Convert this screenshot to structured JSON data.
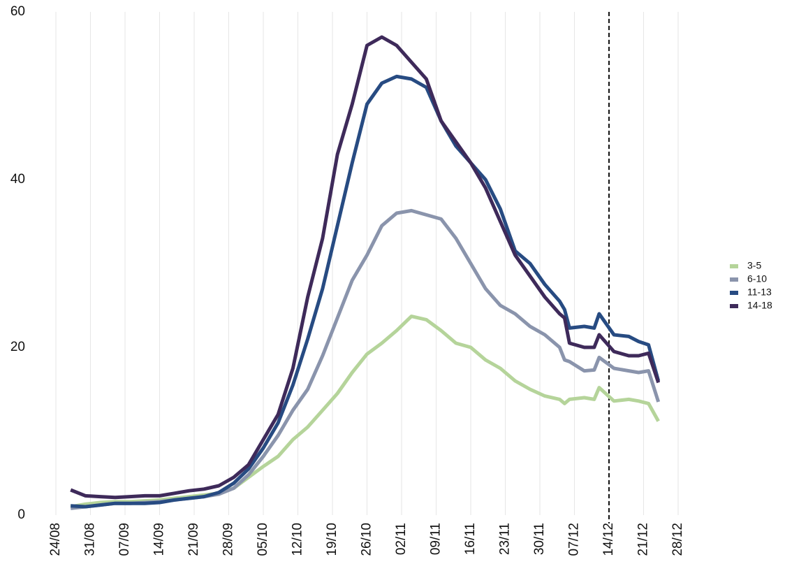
{
  "chart_data": {
    "type": "line",
    "x": [
      "27/08",
      "30/08",
      "02/09",
      "05/09",
      "08/09",
      "11/09",
      "14/09",
      "17/09",
      "20/09",
      "23/09",
      "26/09",
      "29/09",
      "02/10",
      "05/10",
      "08/10",
      "11/10",
      "14/10",
      "17/10",
      "20/10",
      "23/10",
      "26/10",
      "29/10",
      "01/11",
      "04/11",
      "07/11",
      "10/11",
      "13/11",
      "16/11",
      "19/11",
      "22/11",
      "25/11",
      "28/11",
      "01/12",
      "04/12",
      "05/12",
      "06/12",
      "09/12",
      "11/12",
      "12/12",
      "15/12",
      "18/12",
      "20/12",
      "22/12",
      "24/12"
    ],
    "series": [
      {
        "name": "3-5",
        "color": "#b5d49a",
        "values": [
          1.0,
          1.3,
          1.5,
          1.6,
          1.6,
          1.7,
          1.8,
          2.0,
          2.2,
          2.4,
          2.6,
          3.2,
          4.5,
          5.8,
          7.0,
          9.0,
          10.5,
          12.5,
          14.5,
          17.0,
          19.2,
          20.5,
          22.0,
          23.7,
          23.3,
          22.0,
          20.5,
          20.0,
          18.5,
          17.5,
          16.0,
          15.0,
          14.2,
          13.8,
          13.3,
          13.8,
          14.0,
          13.8,
          15.2,
          13.6,
          13.8,
          13.6,
          13.3,
          11.2
        ]
      },
      {
        "name": "6-10",
        "color": "#8a94ac",
        "values": [
          0.8,
          1.0,
          1.2,
          1.4,
          1.4,
          1.5,
          1.6,
          1.8,
          2.0,
          2.2,
          2.5,
          3.2,
          4.8,
          7.0,
          9.5,
          12.5,
          15.0,
          19.0,
          23.5,
          28.0,
          31.0,
          34.5,
          36.0,
          36.3,
          35.8,
          35.3,
          33.0,
          30.0,
          27.0,
          25.0,
          24.0,
          22.5,
          21.5,
          20.0,
          18.5,
          18.3,
          17.2,
          17.3,
          18.8,
          17.5,
          17.2,
          17.0,
          17.2,
          13.5
        ]
      },
      {
        "name": "11-13",
        "color": "#274b82",
        "values": [
          1.1,
          1.0,
          1.2,
          1.4,
          1.4,
          1.4,
          1.5,
          1.8,
          2.0,
          2.2,
          2.7,
          3.8,
          5.5,
          8.0,
          11.0,
          15.5,
          21.0,
          27.0,
          34.5,
          42.0,
          49.0,
          51.5,
          52.3,
          52.0,
          51.0,
          47.0,
          44.0,
          42.0,
          40.0,
          36.5,
          31.5,
          30.0,
          27.5,
          25.5,
          24.5,
          22.3,
          22.5,
          22.3,
          24.0,
          21.5,
          21.3,
          20.7,
          20.3,
          16.0
        ]
      },
      {
        "name": "14-18",
        "color": "#3e2a5a",
        "values": [
          3.0,
          2.3,
          2.2,
          2.1,
          2.2,
          2.3,
          2.3,
          2.6,
          2.9,
          3.1,
          3.5,
          4.5,
          6.0,
          9.0,
          12.0,
          17.5,
          26.0,
          33.0,
          43.0,
          49.0,
          56.0,
          57.0,
          56.0,
          54.0,
          52.0,
          47.0,
          44.5,
          42.0,
          39.0,
          35.0,
          31.0,
          28.5,
          26.0,
          24.0,
          23.5,
          20.5,
          20.0,
          20.0,
          21.5,
          19.5,
          19.0,
          19.0,
          19.3,
          15.8
        ]
      }
    ],
    "xlim": [
      "24/08",
      "28/12"
    ],
    "xticks": [
      "24/08",
      "31/08",
      "07/09",
      "14/09",
      "21/09",
      "28/09",
      "05/10",
      "12/10",
      "19/10",
      "26/10",
      "02/11",
      "09/11",
      "16/11",
      "23/11",
      "30/11",
      "07/12",
      "14/12",
      "21/12",
      "28/12"
    ],
    "ylim": [
      0,
      60
    ],
    "yticks": [
      0,
      20,
      40,
      60
    ],
    "grid": true,
    "vline": "14/12",
    "legend": "right"
  }
}
